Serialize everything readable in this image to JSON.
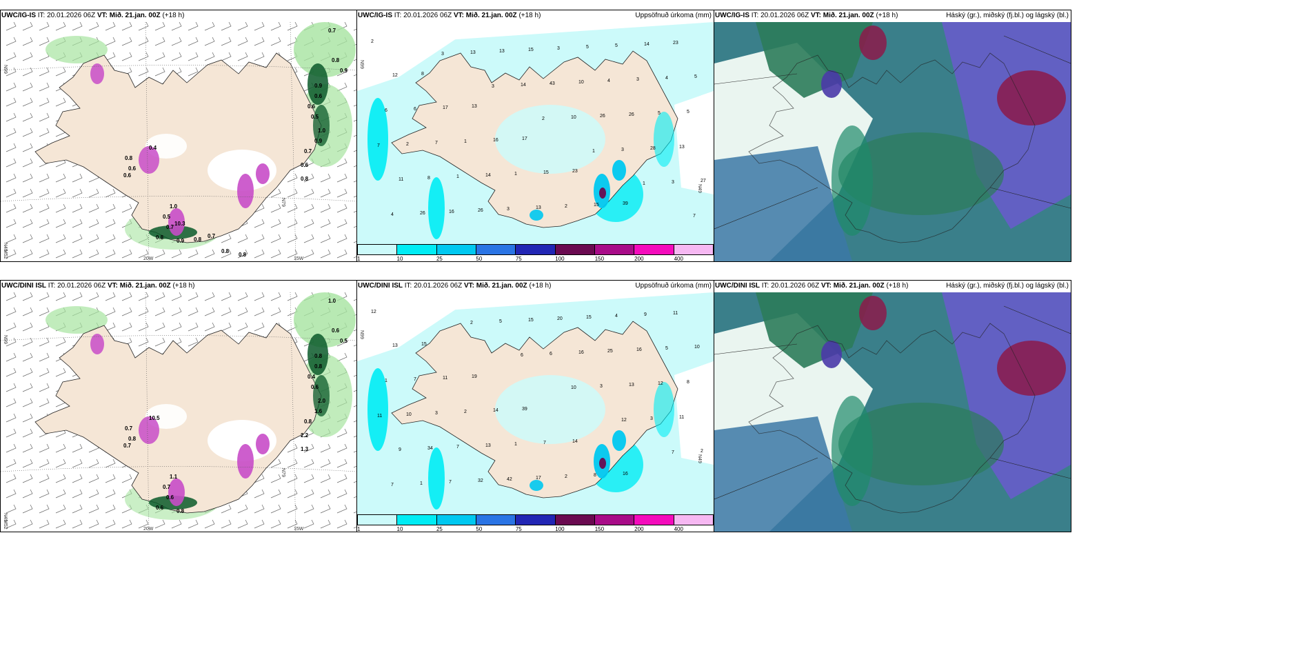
{
  "panels": [
    {
      "id": "p1",
      "model": "UWC/IG-IS",
      "it_label": "IT:",
      "it": "20.01.2026 06Z",
      "vt_label": "VT:",
      "vt": "Mið. 21.jan. 00Z",
      "lead": "(+18 h)",
      "right_title": "",
      "kind": "precip-wind",
      "axis_labels": {
        "lat_top": "N99",
        "lat_bottom": "N49",
        "lat_right": "N79",
        "lon_left": "M52",
        "lon_mid": "20W",
        "lon_right": "15W"
      },
      "values": [
        "0.7",
        "0.8",
        "0.9",
        "0.9",
        "0.6",
        "0.6",
        "0.5",
        "1.0",
        "0.9",
        "0.7",
        "0.6",
        "0.8",
        "0.8",
        "0.6",
        "0.6",
        "0.4",
        "1.0",
        "0.5",
        "0.7",
        "0.8",
        "0.9",
        "0.8",
        "0.7",
        "0.8",
        "0.8",
        "10.3"
      ]
    },
    {
      "id": "p2",
      "model": "UWC/IG-IS",
      "it_label": "IT:",
      "it": "20.01.2026 06Z",
      "vt_label": "VT:",
      "vt": "Mið. 21.jan. 00Z",
      "lead": "(+18 h)",
      "right_title": "Uppsöfnuð úrkoma (mm)",
      "kind": "accum",
      "axis_labels": {
        "lat_top": "N99",
        "lat_right": "N49"
      },
      "values": [
        "2",
        "8",
        "13",
        "17",
        "23",
        "39",
        "23",
        "12",
        "17",
        "16",
        "15",
        "15",
        "14",
        "5",
        "6",
        "1",
        "1",
        "2",
        "5",
        "4",
        "6",
        "7",
        "14",
        "13",
        "5",
        "3",
        "5",
        "2",
        "1",
        "3",
        "3",
        "4",
        "5",
        "7",
        "8",
        "26",
        "15",
        "10",
        "26",
        "13",
        "11",
        "16",
        "13",
        "43",
        "26",
        "28",
        "27",
        "26",
        "13",
        "14",
        "10",
        "3",
        "3",
        "4",
        "3",
        "3",
        "2",
        "1",
        "1",
        "7"
      ]
    },
    {
      "id": "p3",
      "model": "UWC/IG-IS",
      "it_label": "IT:",
      "it": "20.01.2026 06Z",
      "vt_label": "VT:",
      "vt": "Mið. 21.jan. 00Z",
      "lead": "(+18 h)",
      "right_title": "Háský (gr.), miðský (fj.bl.) og lágský (bl.)",
      "kind": "clouds",
      "axis_labels": {},
      "values": []
    },
    {
      "id": "p4",
      "model": "UWC/DINI ISL",
      "it_label": "IT:",
      "it": "20.01.2026 06Z",
      "vt_label": "VT:",
      "vt": "Mið. 21.jan. 00Z",
      "lead": "(+18 h)",
      "right_title": "",
      "kind": "precip-wind",
      "axis_labels": {
        "lat_top": "N99",
        "lat_bottom": "N49",
        "lat_right": "N79",
        "lon_left": "M52",
        "lon_mid": "20W",
        "lon_right": "15W"
      },
      "values": [
        "1.0",
        "0.6",
        "0.5",
        "0.8",
        "0.8",
        "0.4",
        "0.6",
        "2.0",
        "1.6",
        "0.8",
        "2.2",
        "1.3",
        "0.7",
        "0.8",
        "0.7",
        "10.5",
        "1.1",
        "0.7",
        "0.6",
        "0.6",
        "0.8"
      ]
    },
    {
      "id": "p5",
      "model": "UWC/DINI ISL",
      "it_label": "IT:",
      "it": "20.01.2026 06Z",
      "vt_label": "VT:",
      "vt": "Mið. 21.jan. 00Z",
      "lead": "(+18 h)",
      "right_title": "Uppsöfnuð úrkoma (mm)",
      "kind": "accum",
      "axis_labels": {
        "lat_top": "N99",
        "lat_right": "N49"
      },
      "values": [
        "12",
        "15",
        "19",
        "39",
        "14",
        "16",
        "11",
        "13",
        "11",
        "14",
        "7",
        "8",
        "9",
        "10",
        "7",
        "2",
        "1",
        "2",
        "4",
        "5",
        "1",
        "3",
        "13",
        "17",
        "15",
        "16",
        "8",
        "10",
        "7",
        "42",
        "20",
        "25",
        "12",
        "11",
        "34",
        "32",
        "15",
        "16",
        "13",
        "11",
        "9",
        "7",
        "5",
        "6",
        "3",
        "3",
        "2",
        "1",
        "2",
        "6",
        "10",
        "12",
        "7",
        "7"
      ]
    },
    {
      "id": "p6",
      "model": "UWC/DINI ISL",
      "it_label": "IT:",
      "it": "20.01.2026 06Z",
      "vt_label": "VT:",
      "vt": "Mið. 21.jan. 00Z",
      "lead": "(+18 h)",
      "right_title": "Háský (gr.), miðský (fj.bl.) og lágský (bl.)",
      "kind": "clouds",
      "axis_labels": {},
      "values": []
    }
  ],
  "colorbar": {
    "colors": [
      "#ccfafa",
      "#00ecf4",
      "#00c8f0",
      "#2a74e4",
      "#2226b4",
      "#6a0a50",
      "#a80c88",
      "#f40cbc",
      "#f6b8f2"
    ],
    "labels": [
      "1",
      "10",
      "25",
      "50",
      "75",
      "100",
      "150",
      "200",
      "400"
    ]
  },
  "colors": {
    "land": "#f5e6d6",
    "sea": "#ffffff",
    "precip_light": "#ccfafa",
    "precip_cyan": "#00ecf4",
    "precip_green": "#a6e4a0",
    "precip_dark": "#0a5a2a",
    "precip_mag": "#c84cc8",
    "cloud_high": "#8c1a4a",
    "cloud_mid": "#3c78a6",
    "cloud_low": "#2c7c5a"
  }
}
